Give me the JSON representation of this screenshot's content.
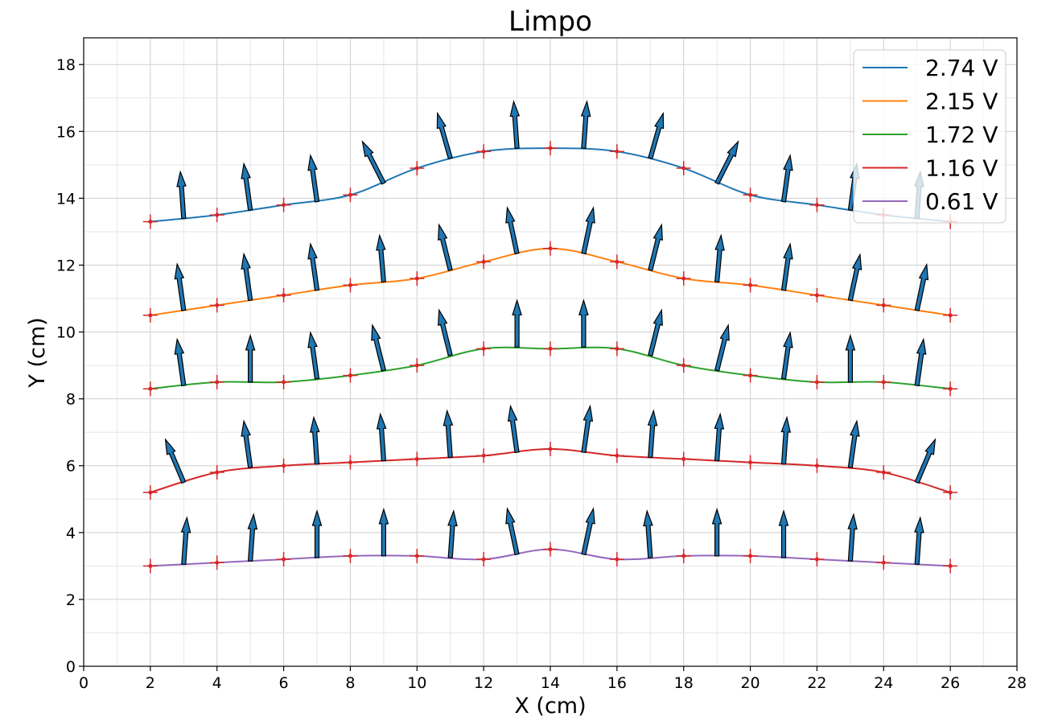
{
  "chart_data": {
    "type": "line",
    "title": "Limpo",
    "xlabel": "X (cm)",
    "ylabel": "Y (cm)",
    "xlim": [
      0,
      28
    ],
    "ylim": [
      0,
      18.8
    ],
    "xticks": [
      "0",
      "2",
      "4",
      "6",
      "8",
      "10",
      "12",
      "14",
      "16",
      "18",
      "20",
      "22",
      "24",
      "26",
      "28"
    ],
    "yticks": [
      "0",
      "2",
      "4",
      "6",
      "8",
      "10",
      "12",
      "14",
      "16",
      "18"
    ],
    "grid": true,
    "legend_position": "top-right",
    "x": [
      2,
      4,
      6,
      8,
      10,
      12,
      14,
      16,
      18,
      20,
      22,
      24,
      26
    ],
    "series": [
      {
        "name": "2.74 V",
        "color": "#1f77b4",
        "values": [
          13.3,
          13.5,
          13.8,
          14.1,
          14.9,
          15.4,
          15.5,
          15.4,
          14.9,
          14.1,
          13.8,
          13.5,
          13.3
        ]
      },
      {
        "name": "2.15 V",
        "color": "#ff7f0e",
        "values": [
          10.5,
          10.8,
          11.1,
          11.4,
          11.6,
          12.1,
          12.5,
          12.1,
          11.6,
          11.4,
          11.1,
          10.8,
          10.5
        ]
      },
      {
        "name": "1.72 V",
        "color": "#2ca02c",
        "values": [
          8.3,
          8.5,
          8.5,
          8.7,
          9.0,
          9.5,
          9.5,
          9.5,
          9.0,
          8.7,
          8.5,
          8.5,
          8.3
        ]
      },
      {
        "name": "1.16 V",
        "color": "#d62728",
        "values": [
          5.2,
          5.8,
          6.0,
          6.1,
          6.2,
          6.3,
          6.5,
          6.3,
          6.2,
          6.1,
          6.0,
          5.8,
          5.2
        ]
      },
      {
        "name": "0.61 V",
        "color": "#9467bd",
        "values": [
          3.0,
          3.1,
          3.2,
          3.3,
          3.3,
          3.2,
          3.5,
          3.2,
          3.3,
          3.3,
          3.2,
          3.1,
          3.0
        ]
      }
    ],
    "arrows": [
      {
        "x": [
          3,
          5,
          7,
          9,
          11,
          13,
          15,
          17,
          19,
          21,
          23,
          25
        ],
        "y": [
          13.4,
          13.65,
          13.9,
          14.45,
          15.2,
          15.5,
          15.5,
          15.2,
          14.45,
          13.9,
          13.65,
          13.4
        ],
        "angle_deg": [
          94,
          98,
          98,
          117,
          106,
          94,
          86,
          74,
          63,
          82,
          82,
          86
        ]
      },
      {
        "x": [
          3,
          5,
          7,
          9,
          11,
          13,
          15,
          17,
          19,
          21,
          23,
          25
        ],
        "y": [
          10.65,
          10.95,
          11.25,
          11.5,
          11.85,
          12.35,
          12.35,
          11.85,
          11.5,
          11.25,
          10.95,
          10.65
        ],
        "angle_deg": [
          98,
          98,
          98,
          95,
          104,
          102,
          78,
          76,
          85,
          82,
          78,
          78
        ]
      },
      {
        "x": [
          3,
          5,
          7,
          9,
          11,
          13,
          15,
          17,
          19,
          21,
          23,
          25
        ],
        "y": [
          8.4,
          8.5,
          8.6,
          8.85,
          9.3,
          9.55,
          9.55,
          9.3,
          8.85,
          8.6,
          8.5,
          8.4
        ],
        "angle_deg": [
          98,
          90,
          98,
          104,
          104,
          90,
          90,
          76,
          76,
          82,
          90,
          82
        ]
      },
      {
        "x": [
          3,
          5,
          7,
          9,
          11,
          13,
          15,
          17,
          19,
          21,
          23,
          25
        ],
        "y": [
          5.5,
          5.95,
          6.05,
          6.15,
          6.25,
          6.4,
          6.4,
          6.25,
          6.15,
          6.05,
          5.95,
          5.5
        ],
        "angle_deg": [
          113,
          98,
          94,
          94,
          94,
          98,
          82,
          86,
          86,
          86,
          82,
          67
        ]
      },
      {
        "x": [
          3,
          5,
          7,
          9,
          11,
          13,
          15,
          17,
          19,
          21,
          23,
          25
        ],
        "y": [
          3.05,
          3.15,
          3.25,
          3.3,
          3.25,
          3.35,
          3.35,
          3.25,
          3.3,
          3.25,
          3.15,
          3.05
        ],
        "angle_deg": [
          86,
          86,
          90,
          90,
          86,
          102,
          78,
          94,
          90,
          90,
          86,
          86
        ]
      }
    ],
    "error_marker_color": "#d62728"
  }
}
